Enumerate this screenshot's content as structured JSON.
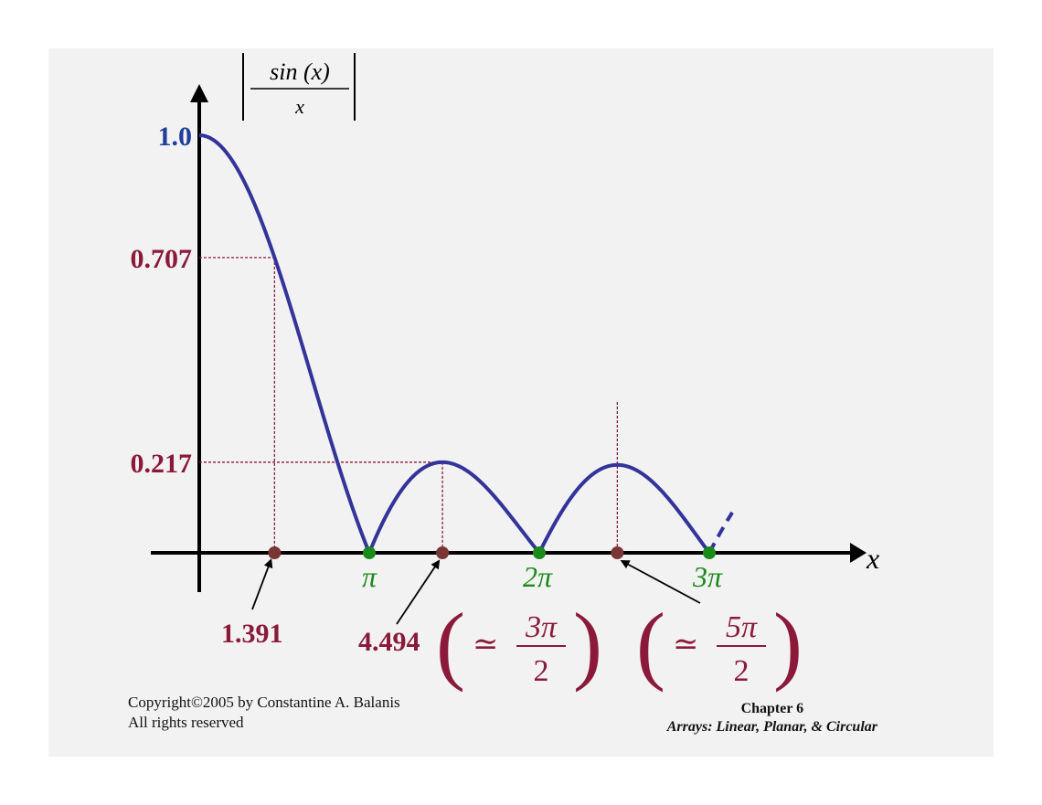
{
  "chart_data": {
    "type": "line",
    "title": "",
    "ylabel_parts": {
      "numerator": "sin (x)",
      "denominator": "x"
    },
    "xlabel": "x",
    "function": "|sin(x)/x|",
    "xlim": [
      0,
      10.0
    ],
    "ylim": [
      0,
      1.0
    ],
    "series": [
      {
        "name": "",
        "x_start": 0.0,
        "x_end": 9.4248,
        "style": "solid",
        "color": "#33339a"
      },
      {
        "name": "",
        "x_start": 9.4248,
        "x_end": 9.85,
        "style": "dashed",
        "color": "#33339a"
      }
    ],
    "y_ticks": [
      {
        "value": 1.0,
        "label": "1.0",
        "color": "#1f3f99"
      },
      {
        "value": 0.707,
        "label": "0.707",
        "color": "#8b1a3a"
      },
      {
        "value": 0.217,
        "label": "0.217",
        "color": "#8b1a3a"
      }
    ],
    "zeros": [
      {
        "x": 3.1416,
        "label": "π"
      },
      {
        "x": 6.2832,
        "label": "2π"
      },
      {
        "x": 9.4248,
        "label": "3π"
      }
    ],
    "marked_points": [
      {
        "x": 1.391,
        "label": "1.391"
      },
      {
        "x": 4.494,
        "label": "4.494"
      },
      {
        "x": 7.725,
        "label": ""
      }
    ],
    "annotations": [
      {
        "at": 4.494,
        "text_prefix": "4.494",
        "approx_numerator": "3π",
        "approx_denominator": "2"
      },
      {
        "at": 7.725,
        "text_prefix": "",
        "approx_numerator": "5π",
        "approx_denominator": "2"
      }
    ],
    "colors": {
      "curve": "#33339a",
      "zero_dot": "#1a8a1a",
      "marker_dot": "#7a3535",
      "guide": "#8b1a3a",
      "axis": "#000000"
    }
  },
  "footer": {
    "copyright_line1": "Copyright©2005  by Constantine A. Balanis",
    "copyright_line2": "All rights reserved",
    "chapter": "Chapter 6",
    "chapter_subtitle": "Arrays:  Linear, Planar, & Circular"
  }
}
